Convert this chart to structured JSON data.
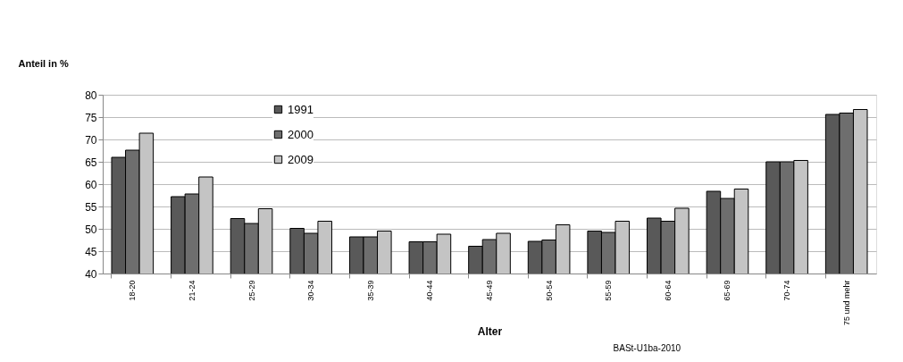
{
  "chart_data": {
    "type": "bar",
    "ylabel": "Anteil in %",
    "xlabel": "Alter",
    "categories": [
      "18-20",
      "21-24",
      "25-29",
      "30-34",
      "35-39",
      "40-44",
      "45-49",
      "50-54",
      "55-59",
      "60-64",
      "65-69",
      "70-74",
      "75 und mehr"
    ],
    "series": [
      {
        "name": "1991",
        "color": "#595959",
        "values": [
          66.0,
          57.2,
          52.3,
          50.1,
          48.2,
          47.1,
          46.1,
          47.2,
          49.5,
          52.4,
          58.4,
          65.0,
          75.6
        ]
      },
      {
        "name": "2000",
        "color": "#6e6e6e",
        "values": [
          67.6,
          57.8,
          51.2,
          49.0,
          48.2,
          47.1,
          47.6,
          47.5,
          49.2,
          51.7,
          56.8,
          65.0,
          75.9
        ]
      },
      {
        "name": "2009",
        "color": "#c4c4c4",
        "values": [
          71.4,
          61.6,
          54.5,
          51.7,
          49.5,
          48.8,
          49.0,
          50.9,
          51.7,
          54.6,
          58.9,
          65.3,
          76.7
        ]
      }
    ],
    "ylim": [
      40,
      80
    ],
    "yticks": [
      40,
      45,
      50,
      55,
      60,
      65,
      70,
      75,
      80
    ],
    "grid": "y",
    "legend": "top left",
    "annotations": [
      "BASt-U1ba-2010"
    ]
  }
}
